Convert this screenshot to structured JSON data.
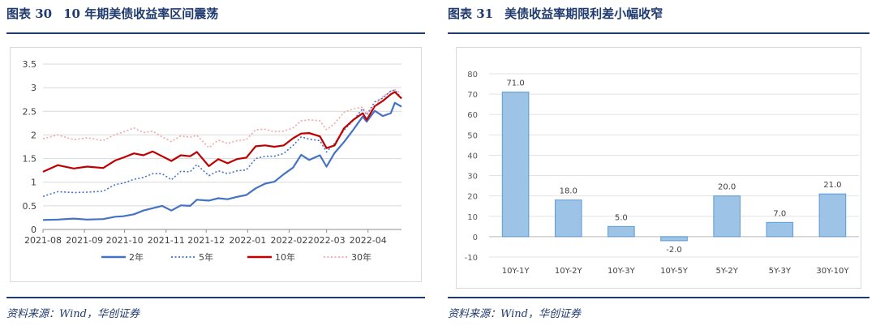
{
  "left_panel": {
    "figure_number": "图表 30",
    "title": "10 年期美债收益率区间震荡",
    "source": "资料来源：Wind，华创证券"
  },
  "right_panel": {
    "figure_number": "图表 31",
    "title": "美债收益率期限利差小幅收窄",
    "source": "资料来源：Wind，华创证券"
  },
  "chart_data": [
    {
      "type": "line",
      "x_ticks": [
        "2021-08",
        "2021-09",
        "2021-10",
        "2021-11",
        "2021-12",
        "2022-01",
        "2022-02",
        "2022-03",
        "2022-04"
      ],
      "y_ticks": [
        "0",
        "0.5",
        "1",
        "1.5",
        "2",
        "2.5",
        "3",
        "3.5"
      ],
      "ylim": [
        0,
        3.5
      ],
      "x_range": [
        "2021-08",
        "2022-04-26"
      ],
      "grid": "horizontal",
      "legend_position": "bottom",
      "series": [
        {
          "name": "2年",
          "color": "#4472c4",
          "style": "solid",
          "points": [
            [
              "2021-08-01",
              0.2
            ],
            [
              "2021-08-12",
              0.21
            ],
            [
              "2021-08-24",
              0.23
            ],
            [
              "2021-09-03",
              0.21
            ],
            [
              "2021-09-15",
              0.22
            ],
            [
              "2021-09-24",
              0.27
            ],
            [
              "2021-09-30",
              0.28
            ],
            [
              "2021-10-08",
              0.32
            ],
            [
              "2021-10-15",
              0.4
            ],
            [
              "2021-10-22",
              0.45
            ],
            [
              "2021-10-29",
              0.5
            ],
            [
              "2021-11-05",
              0.4
            ],
            [
              "2021-11-12",
              0.51
            ],
            [
              "2021-11-19",
              0.5
            ],
            [
              "2021-11-24",
              0.63
            ],
            [
              "2021-12-03",
              0.61
            ],
            [
              "2021-12-10",
              0.66
            ],
            [
              "2021-12-17",
              0.64
            ],
            [
              "2021-12-24",
              0.69
            ],
            [
              "2021-12-31",
              0.73
            ],
            [
              "2022-01-07",
              0.87
            ],
            [
              "2022-01-14",
              0.97
            ],
            [
              "2022-01-21",
              1.01
            ],
            [
              "2022-01-28",
              1.17
            ],
            [
              "2022-02-04",
              1.31
            ],
            [
              "2022-02-10",
              1.58
            ],
            [
              "2022-02-16",
              1.47
            ],
            [
              "2022-02-24",
              1.57
            ],
            [
              "2022-03-01",
              1.33
            ],
            [
              "2022-03-07",
              1.62
            ],
            [
              "2022-03-14",
              1.85
            ],
            [
              "2022-03-21",
              2.11
            ],
            [
              "2022-03-28",
              2.39
            ],
            [
              "2022-03-31",
              2.28
            ],
            [
              "2022-04-06",
              2.51
            ],
            [
              "2022-04-12",
              2.4
            ],
            [
              "2022-04-18",
              2.46
            ],
            [
              "2022-04-21",
              2.68
            ],
            [
              "2022-04-26",
              2.6
            ]
          ]
        },
        {
          "name": "5年",
          "color": "#4472c4",
          "style": "dotted",
          "points": [
            [
              "2021-08-01",
              0.7
            ],
            [
              "2021-08-12",
              0.8
            ],
            [
              "2021-08-24",
              0.78
            ],
            [
              "2021-09-03",
              0.79
            ],
            [
              "2021-09-15",
              0.81
            ],
            [
              "2021-09-24",
              0.95
            ],
            [
              "2021-09-30",
              0.98
            ],
            [
              "2021-10-08",
              1.06
            ],
            [
              "2021-10-15",
              1.1
            ],
            [
              "2021-10-22",
              1.18
            ],
            [
              "2021-10-29",
              1.18
            ],
            [
              "2021-11-05",
              1.05
            ],
            [
              "2021-11-12",
              1.23
            ],
            [
              "2021-11-19",
              1.22
            ],
            [
              "2021-11-24",
              1.37
            ],
            [
              "2021-12-03",
              1.14
            ],
            [
              "2021-12-10",
              1.24
            ],
            [
              "2021-12-17",
              1.18
            ],
            [
              "2021-12-24",
              1.24
            ],
            [
              "2021-12-31",
              1.26
            ],
            [
              "2022-01-07",
              1.5
            ],
            [
              "2022-01-14",
              1.55
            ],
            [
              "2022-01-21",
              1.55
            ],
            [
              "2022-01-28",
              1.61
            ],
            [
              "2022-02-04",
              1.78
            ],
            [
              "2022-02-10",
              1.96
            ],
            [
              "2022-02-16",
              1.91
            ],
            [
              "2022-02-24",
              1.88
            ],
            [
              "2022-03-01",
              1.64
            ],
            [
              "2022-03-07",
              1.82
            ],
            [
              "2022-03-14",
              2.1
            ],
            [
              "2022-03-21",
              2.31
            ],
            [
              "2022-03-28",
              2.56
            ],
            [
              "2022-03-31",
              2.42
            ],
            [
              "2022-04-06",
              2.7
            ],
            [
              "2022-04-12",
              2.78
            ],
            [
              "2022-04-18",
              2.93
            ],
            [
              "2022-04-21",
              2.95
            ],
            [
              "2022-04-26",
              2.78
            ]
          ]
        },
        {
          "name": "10年",
          "color": "#c00000",
          "style": "solid",
          "points": [
            [
              "2021-08-01",
              1.22
            ],
            [
              "2021-08-12",
              1.36
            ],
            [
              "2021-08-24",
              1.29
            ],
            [
              "2021-09-03",
              1.33
            ],
            [
              "2021-09-15",
              1.3
            ],
            [
              "2021-09-24",
              1.46
            ],
            [
              "2021-09-30",
              1.52
            ],
            [
              "2021-10-08",
              1.61
            ],
            [
              "2021-10-15",
              1.57
            ],
            [
              "2021-10-22",
              1.65
            ],
            [
              "2021-10-29",
              1.55
            ],
            [
              "2021-11-05",
              1.45
            ],
            [
              "2021-11-12",
              1.57
            ],
            [
              "2021-11-19",
              1.55
            ],
            [
              "2021-11-24",
              1.64
            ],
            [
              "2021-12-03",
              1.34
            ],
            [
              "2021-12-10",
              1.49
            ],
            [
              "2021-12-17",
              1.4
            ],
            [
              "2021-12-24",
              1.49
            ],
            [
              "2021-12-31",
              1.52
            ],
            [
              "2022-01-07",
              1.76
            ],
            [
              "2022-01-14",
              1.78
            ],
            [
              "2022-01-21",
              1.75
            ],
            [
              "2022-01-28",
              1.78
            ],
            [
              "2022-02-04",
              1.93
            ],
            [
              "2022-02-10",
              2.03
            ],
            [
              "2022-02-16",
              2.04
            ],
            [
              "2022-02-24",
              1.97
            ],
            [
              "2022-03-01",
              1.72
            ],
            [
              "2022-03-07",
              1.78
            ],
            [
              "2022-03-14",
              2.14
            ],
            [
              "2022-03-21",
              2.32
            ],
            [
              "2022-03-28",
              2.46
            ],
            [
              "2022-03-31",
              2.32
            ],
            [
              "2022-04-06",
              2.61
            ],
            [
              "2022-04-12",
              2.72
            ],
            [
              "2022-04-18",
              2.86
            ],
            [
              "2022-04-21",
              2.91
            ],
            [
              "2022-04-26",
              2.77
            ]
          ]
        },
        {
          "name": "30年",
          "color": "#f4a6a6",
          "style": "dotted",
          "points": [
            [
              "2021-08-01",
              1.92
            ],
            [
              "2021-08-12",
              2.0
            ],
            [
              "2021-08-24",
              1.9
            ],
            [
              "2021-09-03",
              1.94
            ],
            [
              "2021-09-15",
              1.88
            ],
            [
              "2021-09-24",
              2.01
            ],
            [
              "2021-09-30",
              2.06
            ],
            [
              "2021-10-08",
              2.15
            ],
            [
              "2021-10-15",
              2.05
            ],
            [
              "2021-10-22",
              2.08
            ],
            [
              "2021-10-29",
              1.96
            ],
            [
              "2021-11-05",
              1.86
            ],
            [
              "2021-11-12",
              1.98
            ],
            [
              "2021-11-19",
              1.95
            ],
            [
              "2021-11-24",
              1.99
            ],
            [
              "2021-12-03",
              1.73
            ],
            [
              "2021-12-10",
              1.89
            ],
            [
              "2021-12-17",
              1.82
            ],
            [
              "2021-12-24",
              1.88
            ],
            [
              "2021-12-31",
              1.9
            ],
            [
              "2022-01-07",
              2.11
            ],
            [
              "2022-01-14",
              2.12
            ],
            [
              "2022-01-21",
              2.07
            ],
            [
              "2022-01-28",
              2.08
            ],
            [
              "2022-02-04",
              2.15
            ],
            [
              "2022-02-10",
              2.3
            ],
            [
              "2022-02-16",
              2.32
            ],
            [
              "2022-02-24",
              2.3
            ],
            [
              "2022-03-01",
              2.11
            ],
            [
              "2022-03-07",
              2.24
            ],
            [
              "2022-03-14",
              2.48
            ],
            [
              "2022-03-21",
              2.55
            ],
            [
              "2022-03-28",
              2.59
            ],
            [
              "2022-03-31",
              2.44
            ],
            [
              "2022-04-06",
              2.63
            ],
            [
              "2022-04-12",
              2.81
            ],
            [
              "2022-04-18",
              2.92
            ],
            [
              "2022-04-21",
              2.96
            ],
            [
              "2022-04-26",
              2.88
            ]
          ]
        }
      ]
    },
    {
      "type": "bar",
      "categories": [
        "10Y-1Y",
        "10Y-2Y",
        "10Y-3Y",
        "10Y-5Y",
        "5Y-2Y",
        "5Y-3Y",
        "30Y-10Y"
      ],
      "values": [
        71.0,
        18.0,
        5.0,
        -2.0,
        20.0,
        7.0,
        21.0
      ],
      "data_labels": [
        "71.0",
        "18.0",
        "5.0",
        "-2.0",
        "20.0",
        "7.0",
        "21.0"
      ],
      "y_ticks": [
        "80",
        "70",
        "60",
        "50",
        "40",
        "30",
        "20",
        "10",
        "0",
        "-10"
      ],
      "ylim": [
        -10,
        80
      ],
      "bar_color": "#9dc3e6",
      "bar_edge_color": "#5b9bd5",
      "grid": "horizontal"
    }
  ]
}
